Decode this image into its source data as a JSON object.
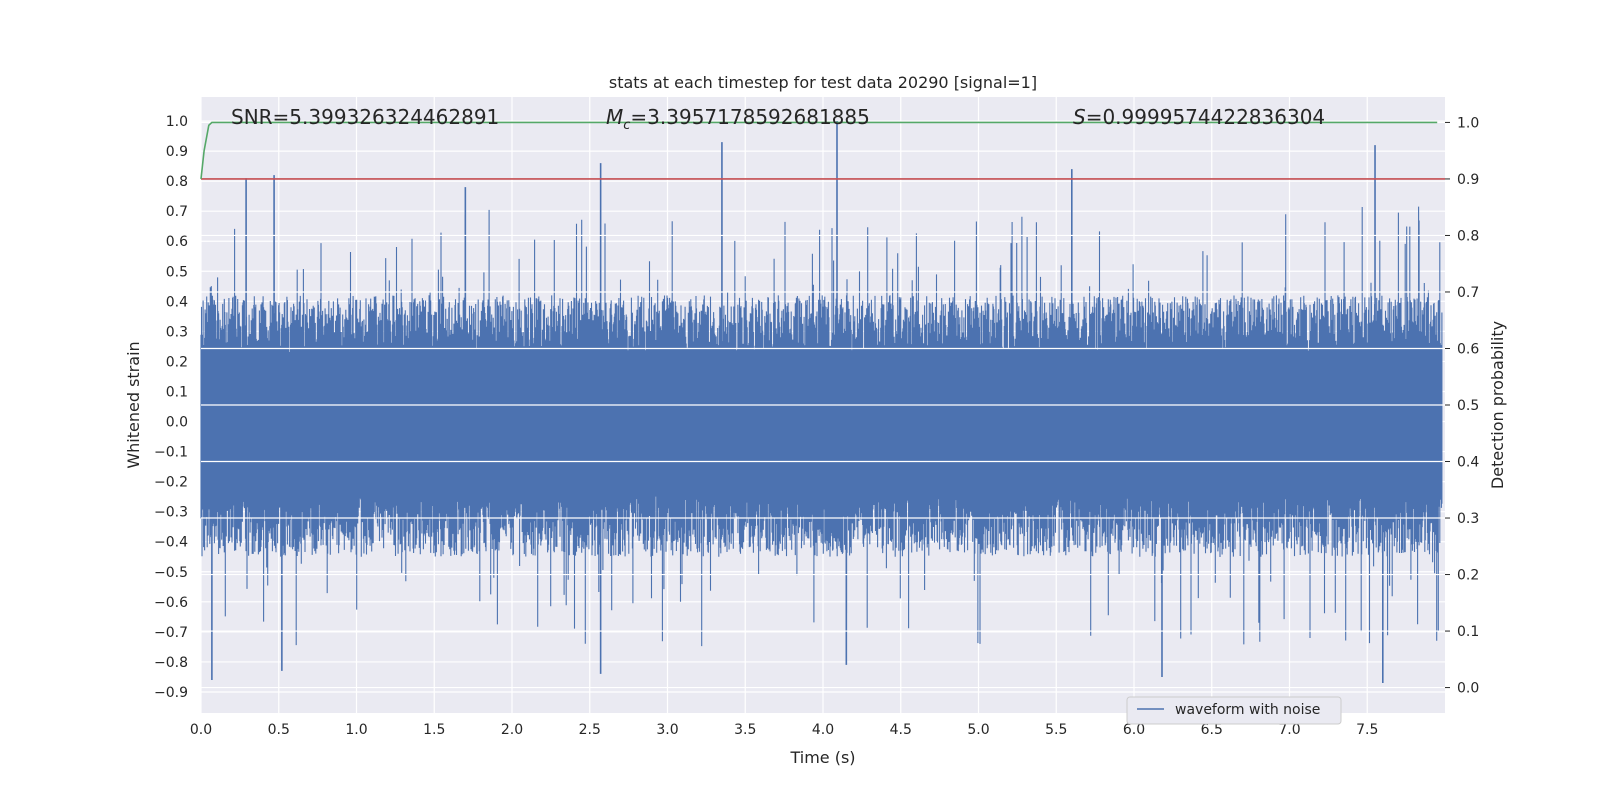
{
  "chart_data": {
    "type": "line",
    "title": "stats at each timestep for test data 20290 [signal=1]",
    "xlabel": "Time (s)",
    "ylabel": "Whitened strain",
    "y2label": "Detection probability",
    "xlim": [
      0.0,
      8.0
    ],
    "ylim": [
      -0.97,
      1.08
    ],
    "y2lim": [
      -0.045,
      1.045
    ],
    "xticks": [
      "0.0",
      "0.5",
      "1.0",
      "1.5",
      "2.0",
      "2.5",
      "3.0",
      "3.5",
      "4.0",
      "4.5",
      "5.0",
      "5.5",
      "6.0",
      "6.5",
      "7.0",
      "7.5"
    ],
    "yticks": [
      "1.0",
      "0.9",
      "0.8",
      "0.7",
      "0.6",
      "0.5",
      "0.4",
      "0.3",
      "0.2",
      "0.1",
      "0.0",
      "−0.1",
      "−0.2",
      "−0.3",
      "−0.4",
      "−0.5",
      "−0.6",
      "−0.7",
      "−0.8",
      "−0.9"
    ],
    "y2ticks": [
      "1.0",
      "0.9",
      "0.8",
      "0.7",
      "0.6",
      "0.5",
      "0.4",
      "0.3",
      "0.2",
      "0.1",
      "0.0"
    ],
    "annotations": {
      "snr": "SNR=5.399326324462891",
      "mc_symbol": "M",
      "mc_sub": "c",
      "mc_value": "=3.3957178592681885",
      "s_symbol": "S",
      "s_value": "=0.9999574422836304"
    },
    "series": [
      {
        "name": "waveform with noise",
        "color": "#4c72b0",
        "axis": "left",
        "kind": "noise",
        "sample_rate_hz": 2048,
        "typical_envelope": [
          -0.45,
          0.42
        ],
        "peaks": [
          {
            "x": 0.07,
            "y": -0.86
          },
          {
            "x": 0.29,
            "y": 0.81
          },
          {
            "x": 0.47,
            "y": 0.82
          },
          {
            "x": 0.52,
            "y": -0.83
          },
          {
            "x": 1.7,
            "y": 0.78
          },
          {
            "x": 2.57,
            "y": 0.86
          },
          {
            "x": 2.57,
            "y": -0.84
          },
          {
            "x": 3.35,
            "y": 0.93
          },
          {
            "x": 4.09,
            "y": 1.0
          },
          {
            "x": 4.15,
            "y": -0.81
          },
          {
            "x": 5.6,
            "y": 0.84
          },
          {
            "x": 6.18,
            "y": -0.85
          },
          {
            "x": 7.55,
            "y": 0.92
          },
          {
            "x": 7.6,
            "y": -0.87
          }
        ]
      },
      {
        "name": "",
        "color": "#55a868",
        "axis": "right",
        "kind": "line",
        "x": [
          0.0,
          0.02,
          0.05,
          0.07,
          0.1,
          7.95
        ],
        "y": [
          0.9,
          0.95,
          0.995,
          1.0,
          1.0,
          1.0
        ]
      },
      {
        "name": "",
        "color": "#c44e52",
        "axis": "right",
        "kind": "hline",
        "y": 0.9
      }
    ],
    "legend": {
      "position": "lower-right",
      "entries": [
        "waveform with noise"
      ]
    },
    "grid": true,
    "colors": {
      "background": "#eaeaf2",
      "grid": "#ffffff",
      "text": "#262626"
    }
  }
}
